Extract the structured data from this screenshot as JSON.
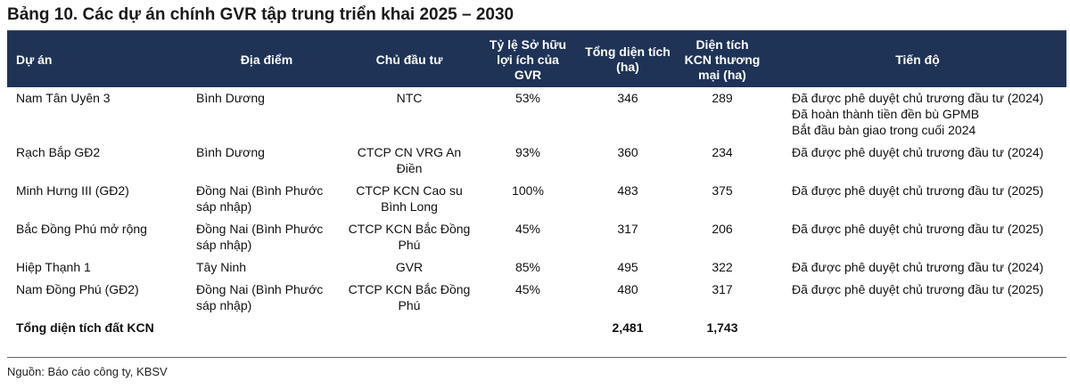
{
  "title": "Bảng 10. Các dự án chính GVR tập trung triển khai 2025 – 2030",
  "headers": {
    "project": "Dự án",
    "location": "Địa điểm",
    "investor": "Chủ đầu tư",
    "ownership": "Tỷ lệ Sở hữu lợi ích của GVR",
    "total_area": "Tổng diện tích (ha)",
    "commercial_area": "Diện tích KCN thương mại (ha)",
    "progress": "Tiến độ"
  },
  "rows": [
    {
      "project": "Nam Tân Uyên 3",
      "location": "Bình Dương",
      "investor": "NTC",
      "ownership": "53%",
      "total_area": "346",
      "commercial_area": "289",
      "progress": [
        "Đã được phê duyệt chủ trương đầu tư (2024)",
        "Đã hoàn thành tiền đền bù GPMB",
        "Bắt đầu bàn giao trong cuối 2024"
      ]
    },
    {
      "project": "Rạch Bắp GĐ2",
      "location": "Bình Dương",
      "investor": "CTCP CN VRG An Điền",
      "ownership": "93%",
      "total_area": "360",
      "commercial_area": "234",
      "progress": [
        "Đã được phê duyệt chủ trương đầu tư (2024)"
      ]
    },
    {
      "project": "Minh Hưng III (GĐ2)",
      "location": "Đồng Nai (Bình Phước sáp nhập)",
      "investor": "CTCP KCN Cao su Bình Long",
      "ownership": "100%",
      "total_area": "483",
      "commercial_area": "375",
      "progress": [
        "Đã được phê duyệt chủ trương đầu tư (2025)"
      ]
    },
    {
      "project": "Bắc Đồng Phú mở rộng",
      "location": "Đồng Nai (Bình Phước sáp nhập)",
      "investor": "CTCP KCN Bắc Đồng Phú",
      "ownership": "45%",
      "total_area": "317",
      "commercial_area": "206",
      "progress": [
        "Đã được phê duyệt chủ trương đầu tư (2025)"
      ]
    },
    {
      "project": "Hiệp Thạnh 1",
      "location": "Tây Ninh",
      "investor": "GVR",
      "ownership": "85%",
      "total_area": "495",
      "commercial_area": "322",
      "progress": [
        "Đã được phê duyệt chủ trương đầu tư (2024)"
      ]
    },
    {
      "project": "Nam Đồng Phú (GĐ2)",
      "location": "Đồng Nai (Bình Phước sáp nhập)",
      "investor": "CTCP KCN Bắc Đồng Phú",
      "ownership": "45%",
      "total_area": "480",
      "commercial_area": "317",
      "progress": [
        "Đã được phê duyệt chủ trương đầu tư (2025)"
      ]
    }
  ],
  "total": {
    "label": "Tổng diện tích đất KCN",
    "total_area": "2,481",
    "commercial_area": "1,743"
  },
  "source": "Nguồn: Báo cáo công ty, KBSV",
  "colors": {
    "header_bg": "#1f3357",
    "header_text": "#ffffff"
  }
}
